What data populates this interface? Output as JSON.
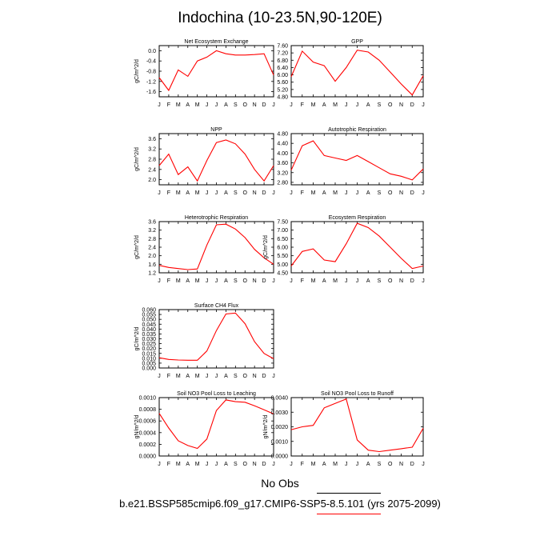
{
  "title": "Indochina (10-23.5N,90-120E)",
  "footer": {
    "obs": "No Obs",
    "case": "b.e21.BSSP585cmip6.f09_g17.CMIP6-SSP5-8.5.101 (yrs 2075-2099)"
  },
  "colors": {
    "line": "#ff0000",
    "obs_rule": "#000000",
    "case_rule": "#ff0000"
  },
  "chart_data": [
    {
      "type": "line",
      "title": "Net Ecosystem Exchange",
      "ylabel": "gC/m^2/d",
      "categories": [
        "J",
        "F",
        "M",
        "A",
        "M",
        "J",
        "J",
        "A",
        "S",
        "O",
        "N",
        "D",
        "J"
      ],
      "ylim": [
        -1.8,
        0.2
      ],
      "yticks": [
        -1.6,
        -1.2,
        -0.8,
        -0.4,
        0.0
      ],
      "ytick_labels": [
        "-1.6",
        "-1.2",
        "-0.8",
        "-0.4",
        "0.0"
      ],
      "values": [
        -1.05,
        -1.55,
        -0.75,
        -1.0,
        -0.4,
        -0.25,
        -0.0,
        -0.12,
        -0.17,
        -0.17,
        -0.15,
        -0.12,
        -0.95
      ]
    },
    {
      "type": "line",
      "title": "GPP",
      "ylabel": "",
      "categories": [
        "J",
        "F",
        "M",
        "A",
        "M",
        "J",
        "J",
        "A",
        "S",
        "O",
        "N",
        "D",
        "J"
      ],
      "ylim": [
        4.8,
        7.6
      ],
      "yticks": [
        4.8,
        5.2,
        5.6,
        6.0,
        6.4,
        6.8,
        7.2,
        7.6
      ],
      "ytick_labels": [
        "4.80",
        "5.20",
        "5.60",
        "6.00",
        "6.40",
        "6.80",
        "7.20",
        "7.60"
      ],
      "values": [
        5.9,
        7.3,
        6.7,
        6.5,
        5.65,
        6.4,
        7.35,
        7.25,
        6.8,
        6.15,
        5.5,
        4.9,
        5.95
      ]
    },
    {
      "type": "line",
      "title": "NPP",
      "ylabel": "gC/m^2/d",
      "categories": [
        "J",
        "F",
        "M",
        "A",
        "M",
        "J",
        "J",
        "A",
        "S",
        "O",
        "N",
        "D",
        "J"
      ],
      "ylim": [
        1.8,
        3.8
      ],
      "yticks": [
        2.0,
        2.4,
        2.8,
        3.2,
        3.6
      ],
      "ytick_labels": [
        "2.0",
        "2.4",
        "2.8",
        "3.2",
        "3.6"
      ],
      "values": [
        2.55,
        3.0,
        2.2,
        2.5,
        1.95,
        2.75,
        3.45,
        3.55,
        3.4,
        3.0,
        2.4,
        1.95,
        2.55
      ]
    },
    {
      "type": "line",
      "title": "Autotrophic Respiration",
      "ylabel": "",
      "categories": [
        "J",
        "F",
        "M",
        "A",
        "M",
        "J",
        "J",
        "A",
        "S",
        "O",
        "N",
        "D",
        "J"
      ],
      "ylim": [
        2.7,
        4.8
      ],
      "yticks": [
        2.8,
        3.2,
        3.6,
        4.0,
        4.4,
        4.8
      ],
      "ytick_labels": [
        "2.80",
        "3.20",
        "3.60",
        "4.00",
        "4.40",
        "4.80"
      ],
      "values": [
        3.3,
        4.3,
        4.5,
        3.9,
        3.8,
        3.7,
        3.9,
        3.65,
        3.4,
        3.15,
        3.05,
        2.9,
        3.35
      ]
    },
    {
      "type": "line",
      "title": "Heterotrophic Respiration",
      "ylabel": "gC/m^2/d",
      "categories": [
        "J",
        "F",
        "M",
        "A",
        "M",
        "J",
        "J",
        "A",
        "S",
        "O",
        "N",
        "D",
        "J"
      ],
      "ylim": [
        1.2,
        3.6
      ],
      "yticks": [
        1.2,
        1.6,
        2.0,
        2.4,
        2.8,
        3.2,
        3.6
      ],
      "ytick_labels": [
        "1.2",
        "1.6",
        "2.0",
        "2.4",
        "2.8",
        "3.2",
        "3.6"
      ],
      "values": [
        1.55,
        1.45,
        1.4,
        1.35,
        1.38,
        2.5,
        3.45,
        3.48,
        3.25,
        2.85,
        2.3,
        1.9,
        1.6
      ]
    },
    {
      "type": "line",
      "title": "Ecosystem Respiration",
      "ylabel": "gC/m^2/d",
      "categories": [
        "J",
        "F",
        "M",
        "A",
        "M",
        "J",
        "J",
        "A",
        "S",
        "O",
        "N",
        "D",
        "J"
      ],
      "ylim": [
        4.5,
        7.5
      ],
      "yticks": [
        4.5,
        5.0,
        5.5,
        6.0,
        6.5,
        7.0,
        7.5
      ],
      "ytick_labels": [
        "4.50",
        "5.00",
        "5.50",
        "6.00",
        "6.50",
        "7.00",
        "7.50"
      ],
      "values": [
        4.9,
        5.75,
        5.9,
        5.25,
        5.15,
        6.2,
        7.4,
        7.15,
        6.65,
        6.0,
        5.35,
        4.75,
        4.9
      ]
    },
    {
      "type": "line",
      "title": "Surface CH4 Flux",
      "ylabel": "gC/m^2/d",
      "categories": [
        "J",
        "F",
        "M",
        "A",
        "M",
        "J",
        "J",
        "A",
        "S",
        "O",
        "N",
        "D",
        "J"
      ],
      "ylim": [
        0.0,
        0.06
      ],
      "yticks": [
        0.0,
        0.005,
        0.01,
        0.015,
        0.02,
        0.025,
        0.03,
        0.035,
        0.04,
        0.045,
        0.05,
        0.055,
        0.06
      ],
      "ytick_labels": [
        "0.000",
        "0.005",
        "0.010",
        "0.015",
        "0.020",
        "0.025",
        "0.030",
        "0.035",
        "0.040",
        "0.045",
        "0.050",
        "0.055",
        "0.060"
      ],
      "values": [
        0.0105,
        0.0088,
        0.0082,
        0.008,
        0.008,
        0.0175,
        0.0385,
        0.0555,
        0.0565,
        0.0455,
        0.027,
        0.015,
        0.0095
      ]
    },
    {
      "type": "line",
      "title": "Soil NO3 Pool Loss to Leaching",
      "ylabel": "gN/m^2/d",
      "categories": [
        "J",
        "F",
        "M",
        "A",
        "M",
        "J",
        "J",
        "A",
        "S",
        "O",
        "N",
        "D",
        "J"
      ],
      "ylim": [
        0.0,
        0.001
      ],
      "yticks": [
        0.0,
        0.0002,
        0.0004,
        0.0006,
        0.0008,
        0.001
      ],
      "ytick_labels": [
        "0.0000",
        "0.0002",
        "0.0004",
        "0.0006",
        "0.0008",
        "0.0010"
      ],
      "values": [
        0.00073,
        0.00048,
        0.00026,
        0.00018,
        0.00013,
        0.00029,
        0.00078,
        0.00096,
        0.00093,
        0.00092,
        0.00086,
        0.00079,
        0.00072
      ]
    },
    {
      "type": "line",
      "title": "Soil NO3 Pool Loss to Runoff",
      "ylabel": "gN/m^2/d",
      "categories": [
        "J",
        "F",
        "M",
        "A",
        "M",
        "J",
        "J",
        "A",
        "S",
        "O",
        "N",
        "D",
        "J"
      ],
      "ylim": [
        0.0,
        0.004
      ],
      "yticks": [
        0.0,
        0.001,
        0.002,
        0.003,
        0.004
      ],
      "ytick_labels": [
        "0.0000",
        "0.0010",
        "0.0020",
        "0.0030",
        "0.0040"
      ],
      "values": [
        0.0018,
        0.002,
        0.0021,
        0.0033,
        0.0036,
        0.0039,
        0.0011,
        0.0004,
        0.0003,
        0.0004,
        0.0005,
        0.0006,
        0.0019
      ]
    }
  ]
}
